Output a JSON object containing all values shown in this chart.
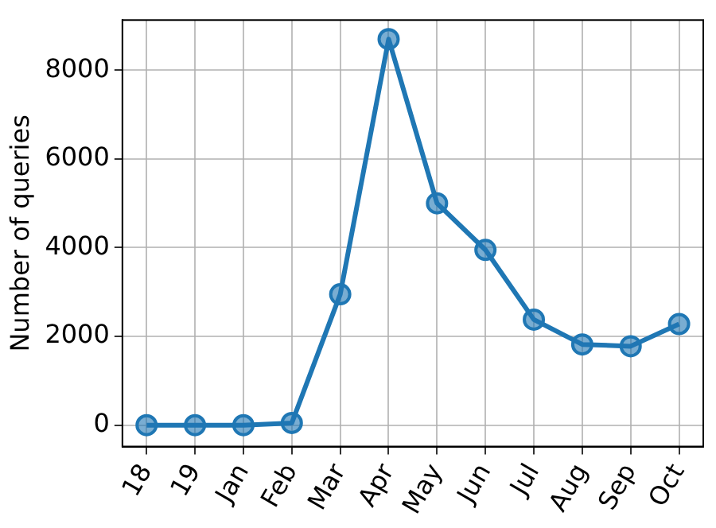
{
  "chart_data": {
    "type": "line",
    "ylabel": "Number of queries",
    "categories": [
      "18",
      "19",
      "Jan",
      "Feb",
      "Mar",
      "Apr",
      "May",
      "Jun",
      "Jul",
      "Aug",
      "Sep",
      "Oct"
    ],
    "series": [
      {
        "color": "#1f77b4",
        "values": [
          0,
          0,
          0,
          50,
          2950,
          8700,
          5000,
          3950,
          2380,
          1820,
          1780,
          2280
        ]
      }
    ],
    "ylim": [
      -480,
      9130
    ],
    "yticks": [
      0,
      2000,
      4000,
      6000,
      8000
    ],
    "grid": true,
    "legend": false,
    "marker": "circle",
    "line_style": "solid"
  }
}
